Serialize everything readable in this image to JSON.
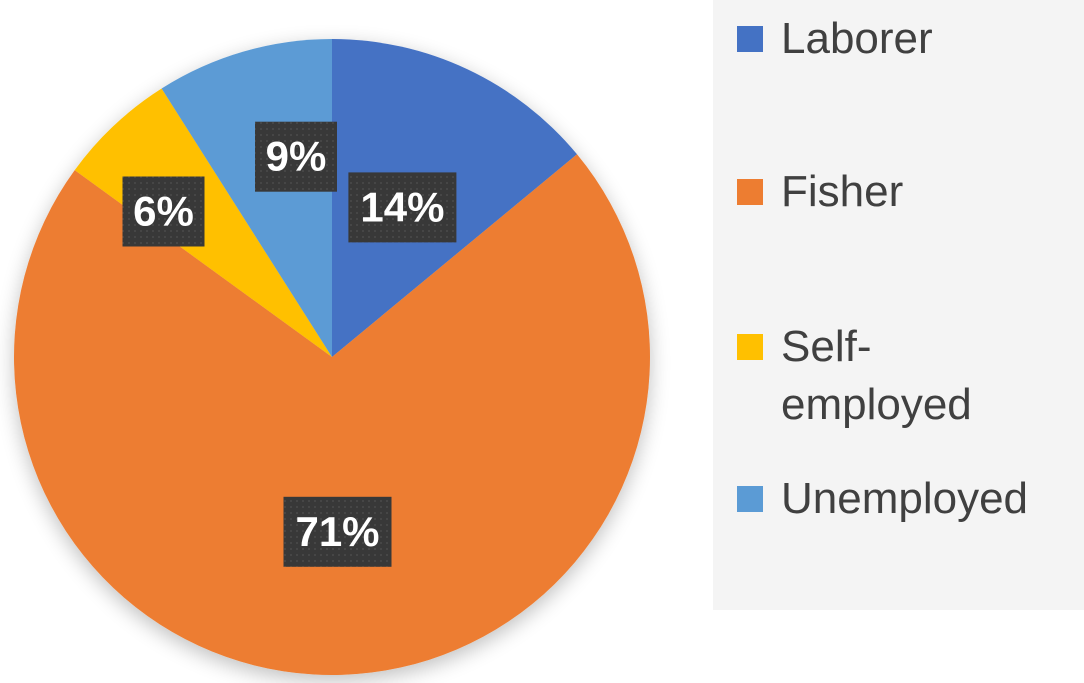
{
  "chart_data": {
    "type": "pie",
    "title": "",
    "start_angle_deg": 0,
    "direction": "clockwise",
    "slices": [
      {
        "label": "Laborer",
        "value": 14,
        "display": "14%",
        "color": "#4472c4"
      },
      {
        "label": "Fisher",
        "value": 71,
        "display": "71%",
        "color": "#ed7d31"
      },
      {
        "label": "Self-employed",
        "value": 6,
        "display": "6%",
        "color": "#ffc000"
      },
      {
        "label": "Unemployed",
        "value": 9,
        "display": "9%",
        "color": "#5b9bd5"
      }
    ],
    "legend": {
      "position": "right",
      "items": [
        "Laborer",
        "Fisher",
        "Self-employed",
        "Unemployed"
      ]
    },
    "data_label_style": {
      "background": "#3a3a3a",
      "text_color": "#ffffff"
    }
  }
}
